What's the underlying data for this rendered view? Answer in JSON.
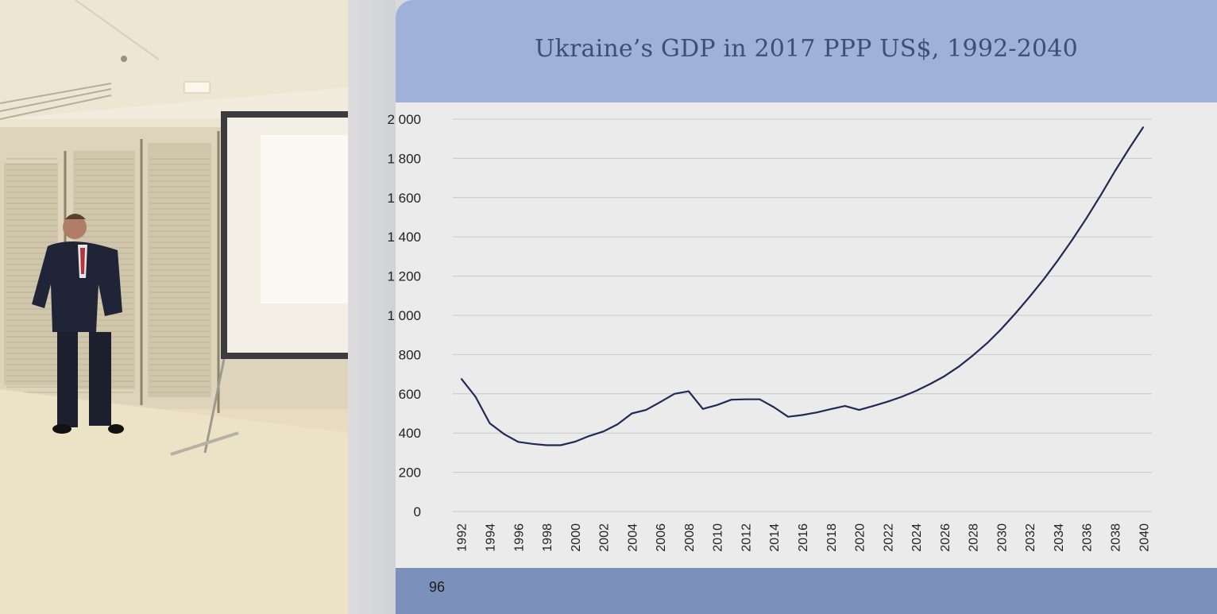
{
  "slide": {
    "title": "Ukraine’s GDP in 2017 PPP US$, 1992-2040",
    "page_number": "96"
  },
  "colors": {
    "header": "#9fb1d9",
    "footer": "#7b90ba",
    "title_text": "#3e4f75",
    "line": "#1f2a55",
    "grid": "#c8c8c8"
  },
  "chart_data": {
    "type": "line",
    "title": "Ukraine’s GDP in 2017 PPP US$, 1992-2040",
    "xlabel": "",
    "ylabel": "",
    "ylim": [
      0,
      2000
    ],
    "y_ticks": [
      0,
      200,
      400,
      600,
      800,
      1000,
      1200,
      1400,
      1600,
      1800,
      2000
    ],
    "y_tick_labels": [
      "0",
      "200",
      "400",
      "600",
      "800",
      "1 000",
      "1 200",
      "1 400",
      "1 600",
      "1 800",
      "2 000"
    ],
    "x_tick_labels": [
      "1992",
      "1994",
      "1996",
      "1998",
      "2000",
      "2002",
      "2004",
      "2006",
      "2008",
      "2010",
      "2012",
      "2014",
      "2016",
      "2018",
      "2020",
      "2022",
      "2024",
      "2026",
      "2028",
      "2030",
      "2032",
      "2034",
      "2036",
      "2038",
      "2040"
    ],
    "grid": true,
    "legend": "none",
    "x": [
      1992,
      1993,
      1994,
      1995,
      1996,
      1997,
      1998,
      1999,
      2000,
      2001,
      2002,
      2003,
      2004,
      2005,
      2006,
      2007,
      2008,
      2009,
      2010,
      2011,
      2012,
      2013,
      2014,
      2015,
      2016,
      2017,
      2018,
      2019,
      2020,
      2021,
      2022,
      2023,
      2024,
      2025,
      2026,
      2027,
      2028,
      2029,
      2030,
      2031,
      2032,
      2033,
      2034,
      2035,
      2036,
      2037,
      2038,
      2039,
      2040
    ],
    "series": [
      {
        "values": [
          677,
          585,
          450,
          395,
          355,
          345,
          338,
          338,
          356,
          385,
          408,
          445,
          500,
          518,
          558,
          600,
          613,
          523,
          543,
          570,
          572,
          572,
          532,
          483,
          492,
          505,
          522,
          538,
          518,
          538,
          560,
          585,
          615,
          650,
          690,
          738,
          795,
          858,
          930,
          1010,
          1095,
          1185,
          1282,
          1385,
          1495,
          1612,
          1735,
          1850,
          1960
        ]
      }
    ]
  }
}
